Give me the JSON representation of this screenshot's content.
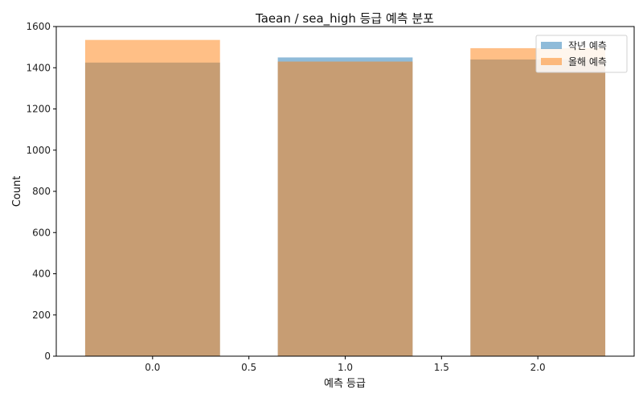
{
  "chart_data": {
    "type": "bar",
    "title": "Taean / sea_high 등급 예측 분포",
    "xlabel": "예측 등급",
    "ylabel": "Count",
    "categories": [
      0,
      1,
      2
    ],
    "series": [
      {
        "name": "작년 예측",
        "values": [
          1425,
          1450,
          1440
        ],
        "color": "#1f77b4",
        "alpha": 0.5
      },
      {
        "name": "올해 예측",
        "values": [
          1535,
          1430,
          1495
        ],
        "color": "#ff7f0e",
        "alpha": 0.5
      }
    ],
    "xlim": [
      -0.5,
      2.5
    ],
    "ylim": [
      0,
      1600
    ],
    "xticks": [
      0.0,
      0.5,
      1.0,
      1.5,
      2.0
    ],
    "xtick_labels": [
      "0.0",
      "0.5",
      "1.0",
      "1.5",
      "2.0"
    ],
    "yticks": [
      0,
      200,
      400,
      600,
      800,
      1000,
      1200,
      1400,
      1600
    ],
    "ytick_labels": [
      "0",
      "200",
      "400",
      "600",
      "800",
      "1000",
      "1200",
      "1400",
      "1600"
    ],
    "bar_width": 0.7,
    "grid": false,
    "legend_position": "top-right"
  }
}
